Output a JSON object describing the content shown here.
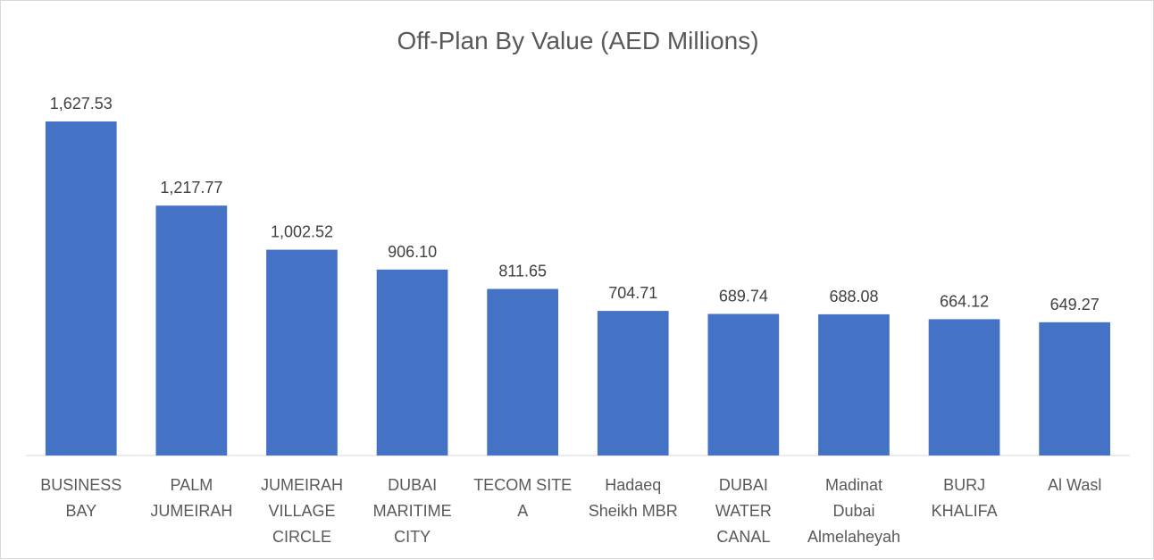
{
  "chart_data": {
    "type": "bar",
    "title": "Off-Plan By Value (AED Millions)",
    "xlabel": "",
    "ylabel": "",
    "ylim": [
      0,
      1700
    ],
    "grid": false,
    "legend": "none",
    "colors": {
      "bar": "#4472c4",
      "axis": "#d9d9d9"
    },
    "categories": [
      [
        "BUSINESS",
        "BAY"
      ],
      [
        "PALM",
        "JUMEIRAH"
      ],
      [
        "JUMEIRAH",
        "VILLAGE",
        "CIRCLE"
      ],
      [
        "DUBAI",
        "MARITIME",
        "CITY"
      ],
      [
        "TECOM SITE",
        "A"
      ],
      [
        "Hadaeq",
        "Sheikh MBR"
      ],
      [
        "DUBAI",
        "WATER",
        "CANAL"
      ],
      [
        "Madinat",
        "Dubai",
        "Almelaheyah"
      ],
      [
        "BURJ",
        "KHALIFA"
      ],
      [
        "Al Wasl"
      ]
    ],
    "values": [
      1627.53,
      1217.77,
      1002.52,
      906.1,
      811.65,
      704.71,
      689.74,
      688.08,
      664.12,
      649.27
    ],
    "data_labels": [
      "1,627.53",
      "1,217.77",
      "1,002.52",
      "906.10",
      "811.65",
      "704.71",
      "689.74",
      "688.08",
      "664.12",
      "649.27"
    ]
  }
}
